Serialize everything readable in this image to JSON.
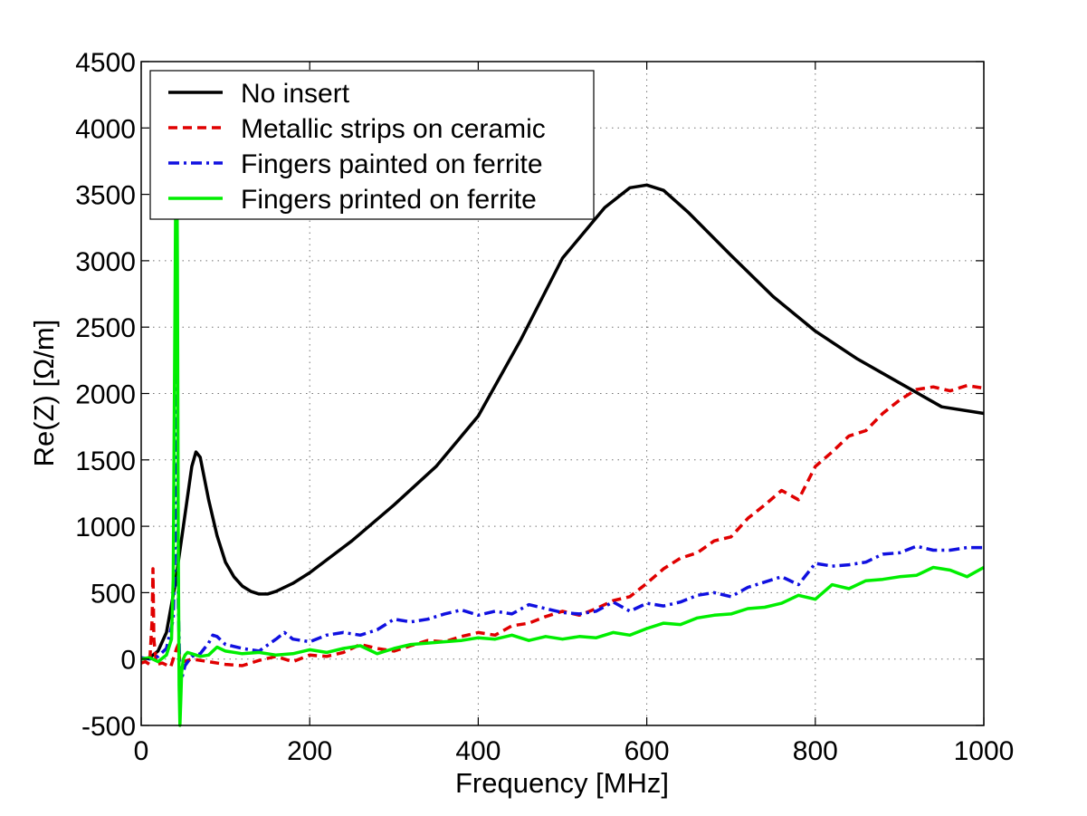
{
  "chart_data": {
    "type": "line",
    "title": "",
    "xlabel": "Frequency [MHz]",
    "ylabel": "Re(Z) [Ω/m]",
    "xlim": [
      0,
      1000
    ],
    "ylim": [
      -500,
      4500
    ],
    "xticks": [
      0,
      200,
      400,
      600,
      800,
      1000
    ],
    "yticks": [
      -500,
      0,
      500,
      1000,
      1500,
      2000,
      2500,
      3000,
      3500,
      4000,
      4500
    ],
    "grid": true,
    "legend_position": "top-left",
    "series": [
      {
        "name": "No insert",
        "color": "#000000",
        "style": "solid",
        "x": [
          0,
          10,
          20,
          30,
          40,
          50,
          60,
          65,
          70,
          80,
          90,
          100,
          110,
          120,
          130,
          140,
          150,
          160,
          180,
          200,
          250,
          300,
          350,
          400,
          450,
          500,
          550,
          580,
          600,
          620,
          650,
          700,
          750,
          800,
          850,
          900,
          950,
          1000
        ],
        "y": [
          0,
          10,
          60,
          200,
          550,
          1000,
          1450,
          1560,
          1520,
          1200,
          930,
          730,
          620,
          550,
          510,
          490,
          490,
          510,
          570,
          650,
          890,
          1160,
          1450,
          1830,
          2400,
          3020,
          3400,
          3550,
          3570,
          3530,
          3360,
          3040,
          2730,
          2470,
          2260,
          2080,
          1900,
          1850
        ]
      },
      {
        "name": "Metallic strips on ceramic",
        "color": "#e00000",
        "style": "dashed",
        "x": [
          0,
          5,
          10,
          13,
          14,
          15,
          18,
          25,
          35,
          42,
          44,
          46,
          50,
          60,
          80,
          100,
          120,
          140,
          160,
          180,
          200,
          220,
          240,
          260,
          280,
          300,
          320,
          340,
          360,
          380,
          400,
          420,
          440,
          460,
          480,
          500,
          520,
          540,
          560,
          580,
          600,
          620,
          640,
          660,
          680,
          700,
          720,
          740,
          760,
          780,
          800,
          820,
          840,
          860,
          880,
          900,
          920,
          940,
          960,
          980,
          1000
        ],
        "y": [
          -30,
          -20,
          -40,
          300,
          680,
          150,
          -40,
          -30,
          -60,
          80,
          110,
          -30,
          -20,
          0,
          -20,
          -40,
          -50,
          -10,
          20,
          -20,
          30,
          20,
          50,
          110,
          80,
          60,
          100,
          140,
          130,
          170,
          200,
          180,
          250,
          270,
          320,
          360,
          330,
          380,
          440,
          470,
          570,
          680,
          760,
          800,
          890,
          920,
          1060,
          1160,
          1270,
          1200,
          1450,
          1560,
          1680,
          1720,
          1850,
          1950,
          2030,
          2050,
          2020,
          2060,
          2040
        ]
      },
      {
        "name": "Fingers painted on ferrite",
        "color": "#1010e0",
        "style": "dashdot",
        "x": [
          0,
          10,
          20,
          30,
          38,
          40,
          41,
          42,
          43,
          44,
          46,
          48,
          52,
          60,
          70,
          80,
          85,
          90,
          100,
          120,
          140,
          160,
          170,
          180,
          200,
          220,
          240,
          260,
          280,
          300,
          320,
          340,
          360,
          380,
          400,
          420,
          440,
          460,
          480,
          500,
          520,
          540,
          560,
          580,
          600,
          620,
          640,
          660,
          680,
          700,
          720,
          740,
          760,
          780,
          800,
          820,
          840,
          860,
          880,
          900,
          920,
          940,
          960,
          980,
          1000
        ],
        "y": [
          10,
          0,
          20,
          80,
          300,
          800,
          1800,
          2800,
          1500,
          400,
          -100,
          -150,
          -50,
          20,
          40,
          120,
          180,
          170,
          110,
          80,
          60,
          150,
          200,
          150,
          130,
          180,
          200,
          180,
          220,
          300,
          280,
          300,
          340,
          370,
          330,
          360,
          340,
          410,
          380,
          350,
          340,
          360,
          430,
          360,
          420,
          400,
          430,
          480,
          500,
          470,
          540,
          580,
          620,
          560,
          720,
          700,
          710,
          730,
          790,
          800,
          850,
          820,
          820,
          840,
          840
        ]
      },
      {
        "name": "Fingers printed on ferrite",
        "color": "#00ee00",
        "style": "solid",
        "x": [
          0,
          10,
          20,
          30,
          36,
          38,
          40,
          41,
          42,
          43,
          44,
          45,
          46,
          47,
          48,
          50,
          52,
          55,
          60,
          70,
          80,
          90,
          100,
          120,
          140,
          160,
          180,
          200,
          220,
          240,
          260,
          280,
          300,
          320,
          340,
          360,
          380,
          400,
          420,
          440,
          460,
          480,
          500,
          520,
          540,
          560,
          580,
          600,
          620,
          640,
          660,
          680,
          700,
          720,
          740,
          760,
          780,
          800,
          820,
          840,
          860,
          880,
          900,
          920,
          940,
          960,
          980,
          1000
        ],
        "y": [
          0,
          10,
          -20,
          30,
          150,
          600,
          2500,
          3600,
          4200,
          3000,
          800,
          -200,
          -500,
          -300,
          -100,
          0,
          30,
          50,
          40,
          20,
          30,
          90,
          60,
          40,
          50,
          30,
          40,
          70,
          50,
          80,
          100,
          40,
          80,
          110,
          120,
          130,
          140,
          160,
          150,
          180,
          140,
          170,
          150,
          170,
          160,
          200,
          180,
          230,
          270,
          260,
          310,
          330,
          340,
          380,
          390,
          420,
          480,
          450,
          560,
          530,
          590,
          600,
          620,
          630,
          690,
          670,
          620,
          690
        ]
      }
    ]
  }
}
